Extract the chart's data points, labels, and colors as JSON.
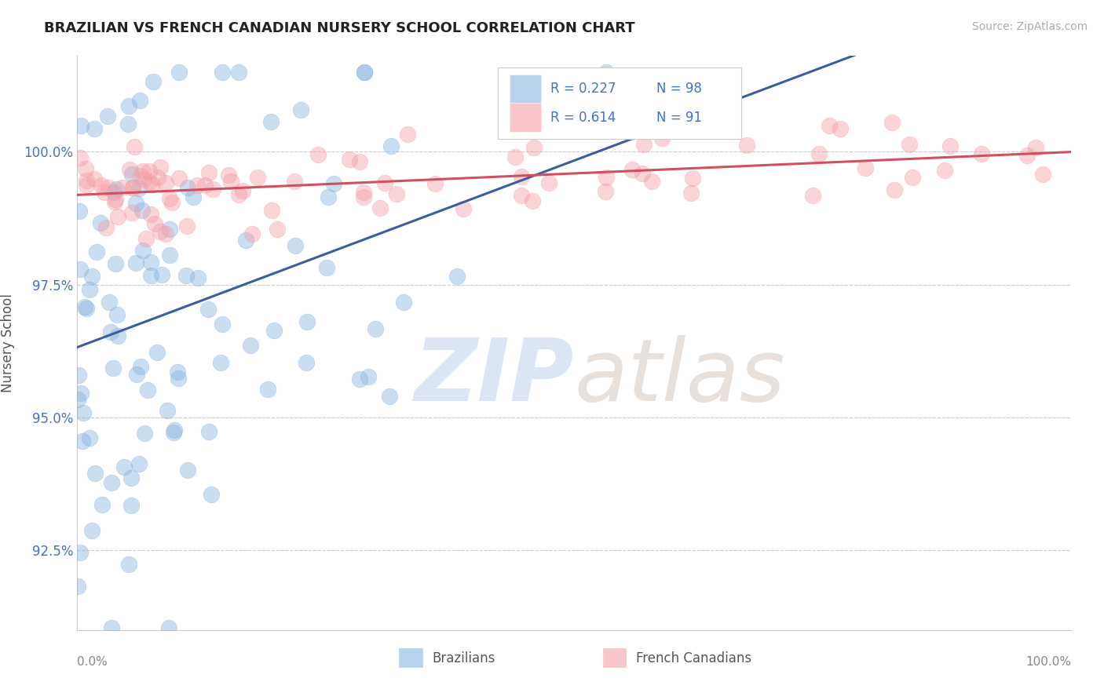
{
  "title": "BRAZILIAN VS FRENCH CANADIAN NURSERY SCHOOL CORRELATION CHART",
  "source": "Source: ZipAtlas.com",
  "ylabel": "Nursery School",
  "yticks": [
    92.5,
    95.0,
    97.5,
    100.0
  ],
  "ytick_labels": [
    "92.5%",
    "95.0%",
    "97.5%",
    "100.0%"
  ],
  "xlim": [
    0.0,
    100.0
  ],
  "ylim": [
    91.0,
    101.8
  ],
  "legend_R_blue": "R = 0.227",
  "legend_N_blue": "N = 98",
  "legend_R_pink": "R = 0.614",
  "legend_N_pink": "N = 91",
  "blue_color": "#8ab4e0",
  "pink_color": "#f4a0a8",
  "blue_line_color": "#3a5fa0",
  "pink_line_color": "#d05060",
  "blue_N": 98,
  "pink_N": 91,
  "blue_R": 0.227,
  "pink_R": 0.614,
  "blue_seed": 12,
  "pink_seed": 7
}
